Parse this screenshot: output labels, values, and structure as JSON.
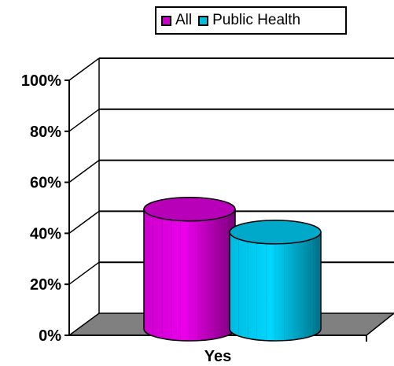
{
  "chart_data": {
    "type": "bar",
    "categories": [
      "Yes"
    ],
    "series": [
      {
        "name": "All",
        "values": [
          47
        ],
        "color": "#cc00cc"
      },
      {
        "name": "Public Health",
        "values": [
          38
        ],
        "color": "#00bbe0"
      }
    ],
    "y_ticks": [
      "0%",
      "20%",
      "40%",
      "60%",
      "80%",
      "100%"
    ],
    "ylim": [
      0,
      100
    ],
    "grid": true,
    "legend_position": "top",
    "style": "3d-cylinder"
  }
}
